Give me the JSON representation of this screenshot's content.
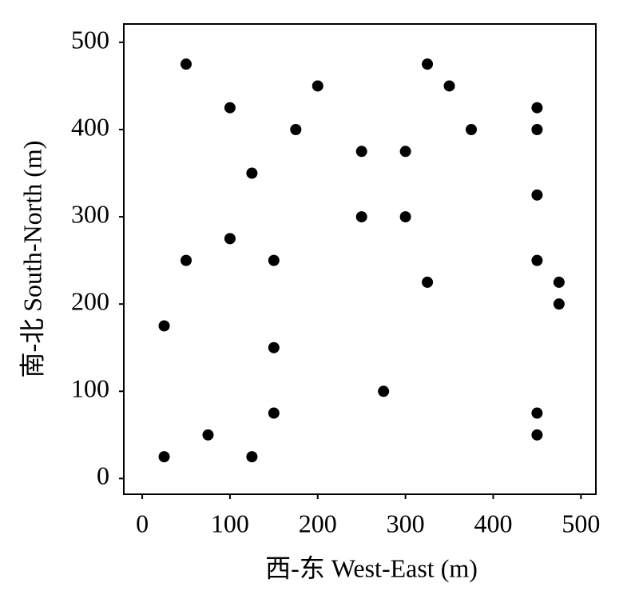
{
  "chart_data": {
    "type": "scatter",
    "x_label": "西-东 West-East (m)",
    "y_label": "南-北 South-North (m)",
    "series": [
      {
        "color": "#000000",
        "x": [
          50,
          100,
          200,
          325,
          350,
          175,
          375,
          450,
          450,
          125,
          250,
          300,
          450,
          250,
          300,
          100,
          50,
          150,
          450,
          325,
          475,
          475,
          25,
          150,
          275,
          150,
          450,
          75,
          450,
          25,
          125
        ],
        "values": [
          475,
          425,
          450,
          475,
          450,
          400,
          400,
          425,
          400,
          350,
          375,
          375,
          325,
          300,
          300,
          275,
          250,
          250,
          250,
          225,
          225,
          200,
          175,
          150,
          100,
          75,
          75,
          50,
          50,
          25,
          25
        ]
      }
    ],
    "xlim": [
      -21,
      517
    ],
    "ylim": [
      -18,
      521
    ],
    "xticks": [
      0,
      100,
      200,
      300,
      400,
      500
    ],
    "yticks": [
      0,
      100,
      200,
      300,
      400,
      500
    ]
  }
}
